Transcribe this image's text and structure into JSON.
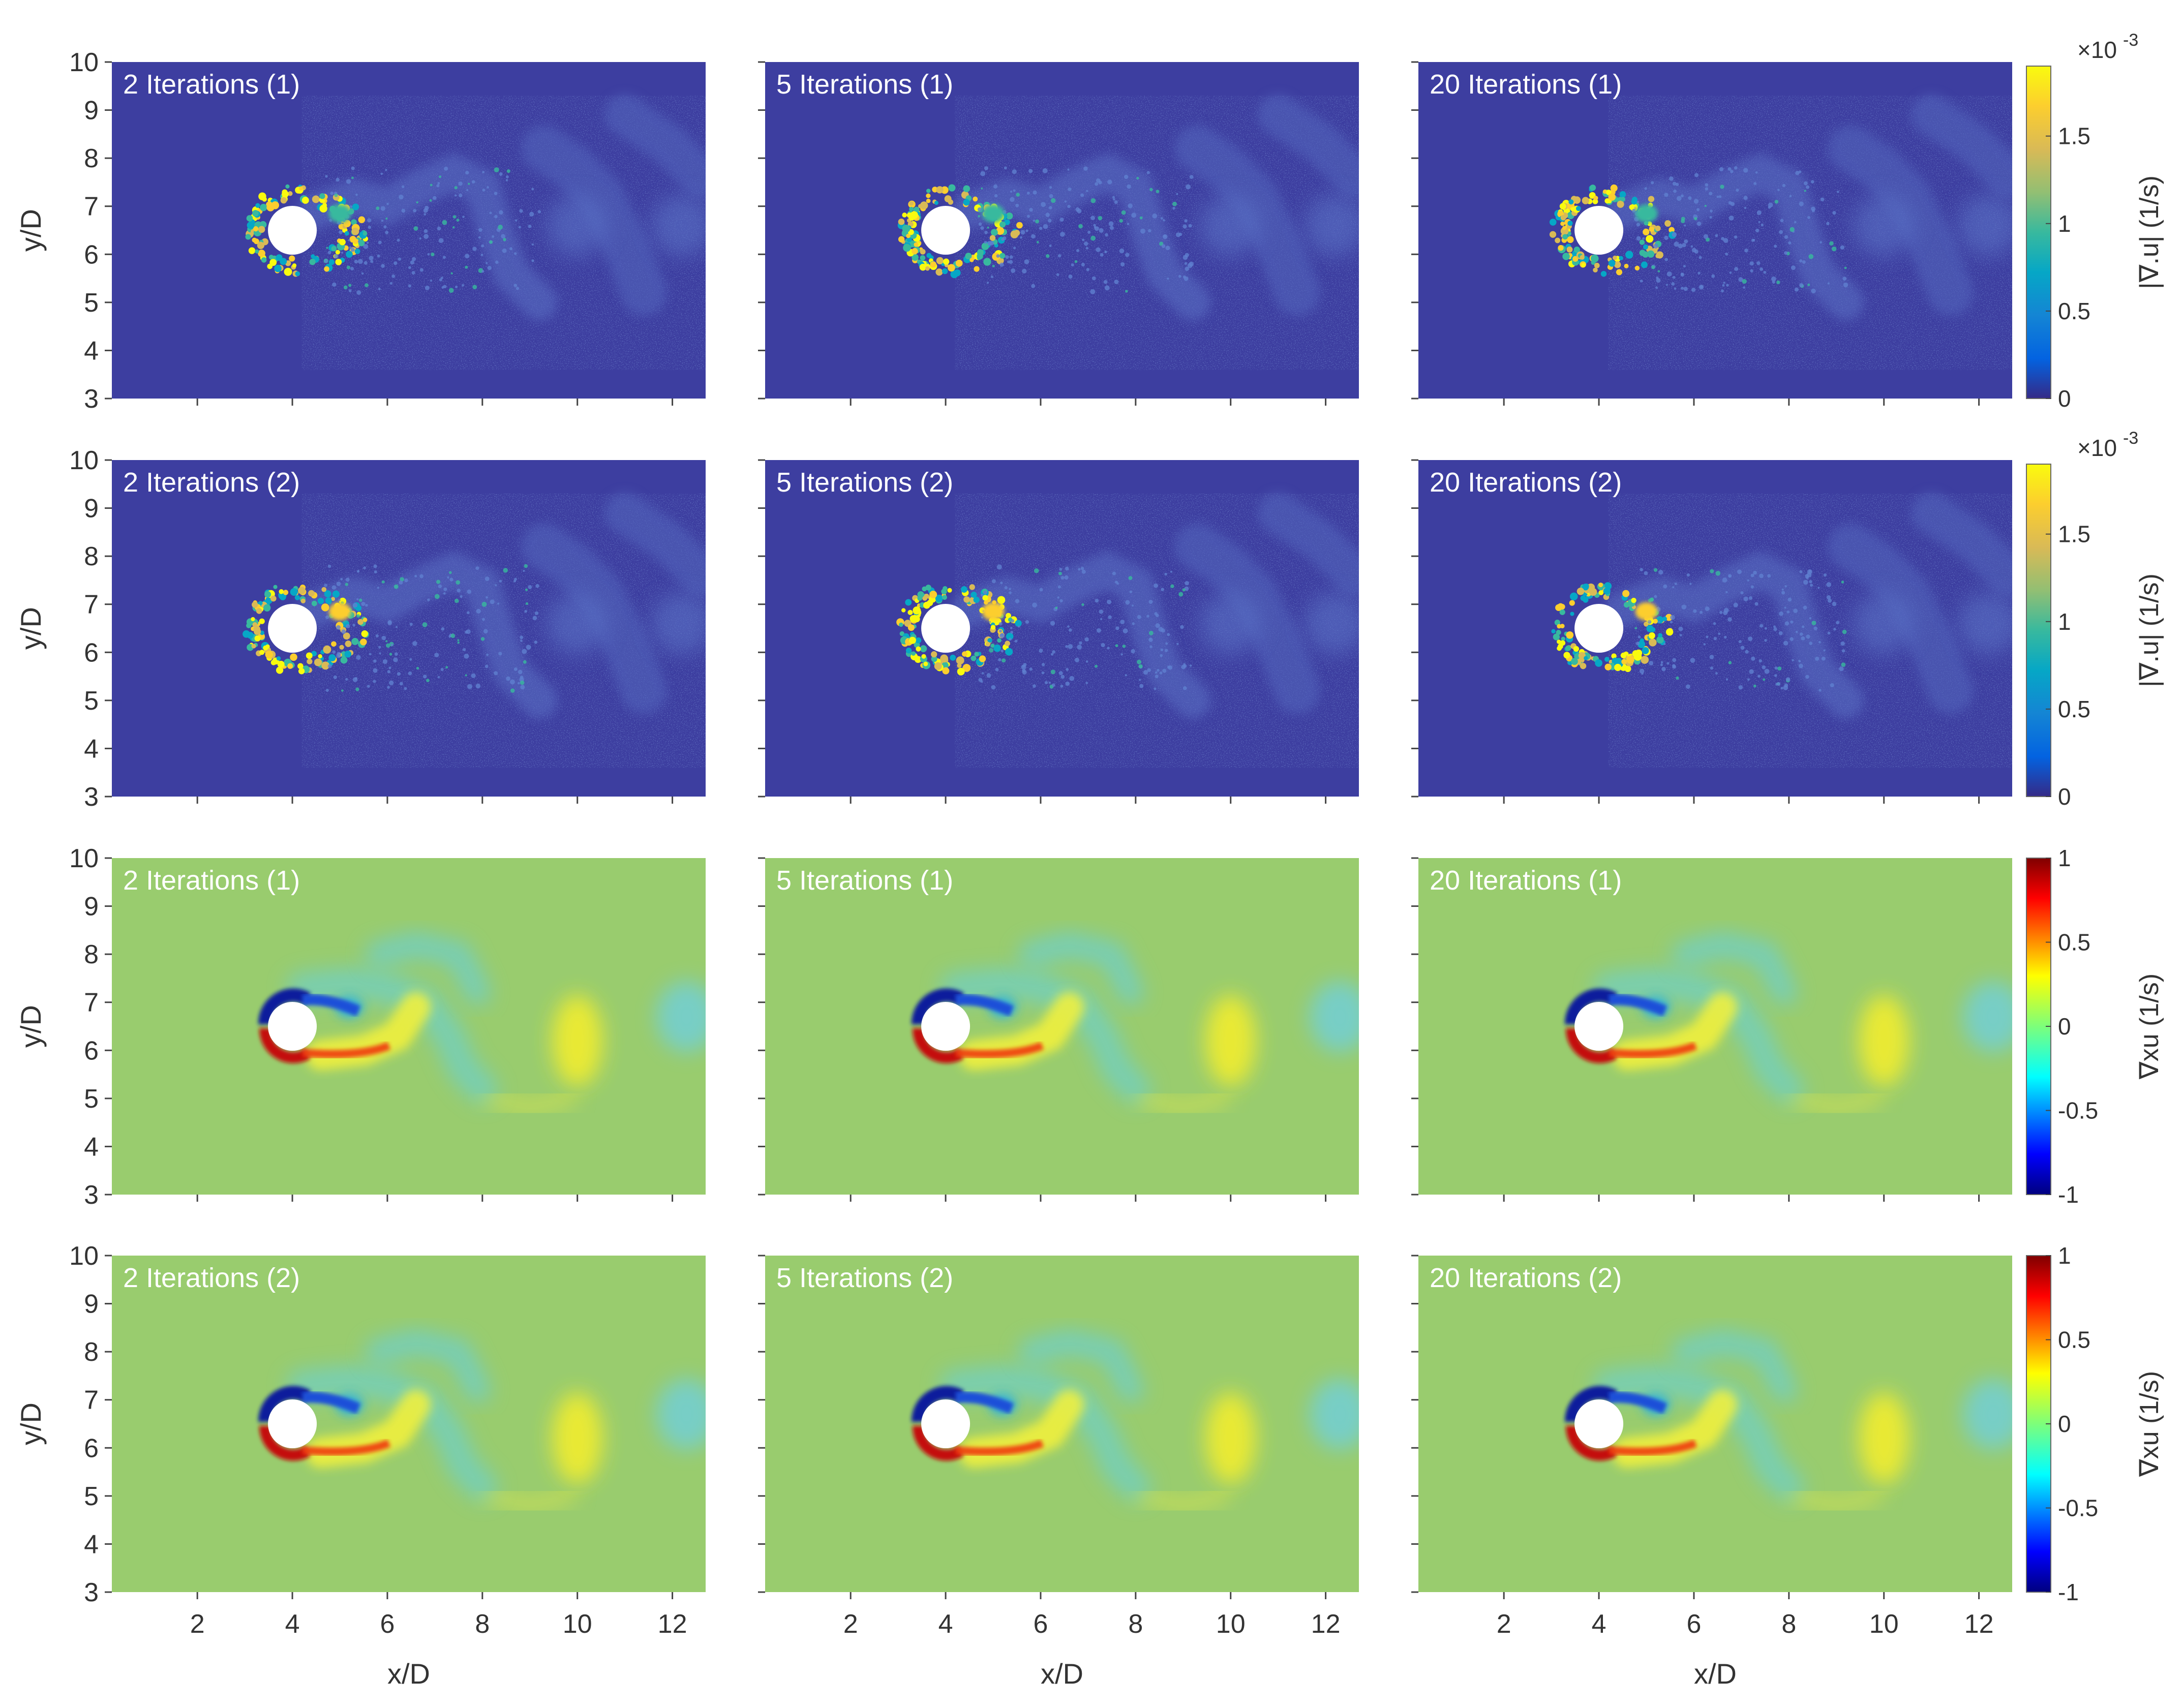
{
  "chart_data": {
    "type": "heatmap",
    "grid": "3x3 panels per colour-scale row, 4 rows",
    "x_axis": {
      "label": "x/D",
      "ticks": [
        "2",
        "4",
        "6",
        "8",
        "10",
        "12"
      ],
      "range": [
        0.2,
        12.7
      ]
    },
    "y_axis": {
      "label": "y/D",
      "ticks": [
        "3",
        "4",
        "5",
        "6",
        "7",
        "8",
        "9",
        "10"
      ],
      "range": [
        3,
        10
      ]
    },
    "cylinder_center": [
      4,
      6.5
    ],
    "panels": [
      {
        "row": 0,
        "col": 0,
        "label": "2 Iterations (1)",
        "field": "divergence"
      },
      {
        "row": 0,
        "col": 1,
        "label": "5 Iterations (1)",
        "field": "divergence"
      },
      {
        "row": 0,
        "col": 2,
        "label": "20 Iterations (1)",
        "field": "divergence"
      },
      {
        "row": 1,
        "col": 0,
        "label": "2 Iterations (2)",
        "field": "divergence"
      },
      {
        "row": 1,
        "col": 1,
        "label": "5 Iterations (2)",
        "field": "divergence"
      },
      {
        "row": 1,
        "col": 2,
        "label": "20 Iterations (2)",
        "field": "divergence"
      },
      {
        "row": 2,
        "col": 0,
        "label": "2 Iterations (1)",
        "field": "vorticity"
      },
      {
        "row": 2,
        "col": 1,
        "label": "5 Iterations (1)",
        "field": "vorticity"
      },
      {
        "row": 2,
        "col": 2,
        "label": "20 Iterations (1)",
        "field": "vorticity"
      },
      {
        "row": 3,
        "col": 0,
        "label": "2 Iterations (2)",
        "field": "vorticity"
      },
      {
        "row": 3,
        "col": 1,
        "label": "5 Iterations (2)",
        "field": "vorticity"
      },
      {
        "row": 3,
        "col": 2,
        "label": "20 Iterations (2)",
        "field": "vorticity"
      }
    ],
    "colorbars": [
      {
        "row": 0,
        "label": "|∇.u| (1/s)",
        "exponent": "×10",
        "exponent_power": "-3",
        "ticks": [
          "0",
          "0.5",
          "1",
          "1.5"
        ],
        "tick_values": [
          0,
          0.5,
          1,
          1.5
        ],
        "range": [
          0,
          1.9
        ],
        "colormap": "parula"
      },
      {
        "row": 1,
        "label": "|∇.u| (1/s)",
        "exponent": "×10",
        "exponent_power": "-3",
        "ticks": [
          "0",
          "0.5",
          "1",
          "1.5"
        ],
        "tick_values": [
          0,
          0.5,
          1,
          1.5
        ],
        "range": [
          0,
          1.9
        ],
        "colormap": "parula"
      },
      {
        "row": 2,
        "label": "∇xu (1/s)",
        "ticks": [
          "-1",
          "-0.5",
          "0",
          "0.5",
          "1"
        ],
        "tick_values": [
          -1,
          -0.5,
          0,
          0.5,
          1
        ],
        "range": [
          -1,
          1
        ],
        "colormap": "jet"
      },
      {
        "row": 3,
        "label": "∇xu (1/s)",
        "ticks": [
          "-1",
          "-0.5",
          "0",
          "0.5",
          "1"
        ],
        "tick_values": [
          -1,
          -0.5,
          0,
          0.5,
          1
        ],
        "range": [
          -1,
          1
        ],
        "colormap": "jet"
      }
    ]
  },
  "colors": {
    "divergence_background": "#3d3ea0",
    "vorticity_background": "#99cc6e",
    "panel_label": "#ffffff",
    "axis_text": "#333333"
  }
}
